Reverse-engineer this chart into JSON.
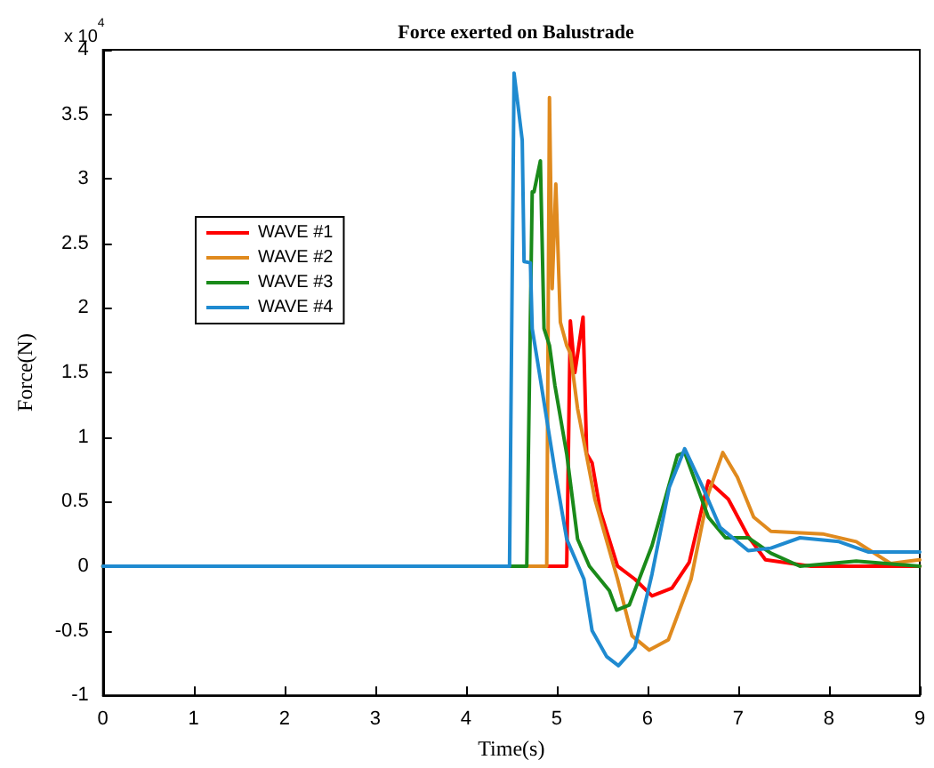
{
  "chart_data": {
    "type": "line",
    "title": "Force exerted on Balustrade",
    "xlabel": "Time(s)",
    "ylabel": "Force(N)",
    "annotations": [
      "x 10$^{4}$"
    ],
    "xlim": [
      0,
      9
    ],
    "xticks": [
      0,
      1,
      2,
      3,
      4,
      5,
      6,
      7,
      8,
      9
    ],
    "ylim": [
      -1,
      4
    ],
    "yticks": [
      -1,
      -0.5,
      0,
      0.5,
      1,
      1.5,
      2,
      2.5,
      3,
      3.5,
      4
    ],
    "grid": false,
    "legend": "top left",
    "marker": "none",
    "line_style": "solid",
    "series": [
      {
        "name": "WAVE #1",
        "color": "#ff0000",
        "x": [
          0,
          5.11,
          5.15,
          5.2,
          5.29,
          5.33,
          5.39,
          5.48,
          5.67,
          5.86,
          6.05,
          6.27,
          6.46,
          6.67,
          6.89,
          7.11,
          7.3,
          7.8,
          9
        ],
        "values": [
          0,
          0,
          1.9,
          1.5,
          1.93,
          0.87,
          0.8,
          0.43,
          0,
          -0.1,
          -0.23,
          -0.17,
          0.03,
          0.66,
          0.52,
          0.23,
          0.05,
          0,
          0
        ]
      },
      {
        "name": "WAVE #2",
        "color": "#e08a1e",
        "x": [
          0,
          4.89,
          4.92,
          4.95,
          4.99,
          5.04,
          5.11,
          5.15,
          5.23,
          5.42,
          5.67,
          5.83,
          6.02,
          6.23,
          6.48,
          6.67,
          6.83,
          6.99,
          7.17,
          7.36,
          7.93,
          8.3,
          8.68,
          9
        ],
        "values": [
          0,
          0,
          3.63,
          2.15,
          2.96,
          1.89,
          1.71,
          1.65,
          1.22,
          0.52,
          -0.1,
          -0.54,
          -0.65,
          -0.57,
          -0.1,
          0.56,
          0.88,
          0.69,
          0.38,
          0.27,
          0.25,
          0.19,
          0.02,
          0.05
        ]
      },
      {
        "name": "WAVE #3",
        "color": "#1a8a1a",
        "x": [
          0,
          4.67,
          4.73,
          4.75,
          4.82,
          4.86,
          4.92,
          4.98,
          5.11,
          5.23,
          5.36,
          5.58,
          5.66,
          5.8,
          6.05,
          6.33,
          6.41,
          6.67,
          6.86,
          7.11,
          7.36,
          7.68,
          8.3,
          9
        ],
        "values": [
          0,
          0,
          2.9,
          2.9,
          3.14,
          1.84,
          1.71,
          1.4,
          0.87,
          0.21,
          0,
          -0.19,
          -0.34,
          -0.3,
          0.16,
          0.86,
          0.88,
          0.38,
          0.22,
          0.22,
          0.1,
          0,
          0.04,
          0
        ]
      },
      {
        "name": "WAVE #4",
        "color": "#1f8ad0",
        "x": [
          0,
          4.48,
          4.53,
          4.62,
          4.64,
          4.71,
          4.73,
          4.79,
          4.98,
          5.11,
          5.3,
          5.39,
          5.55,
          5.68,
          5.86,
          6.05,
          6.24,
          6.41,
          6.61,
          6.8,
          7.11,
          7.36,
          7.68,
          8.11,
          8.43,
          9
        ],
        "values": [
          0,
          0,
          3.82,
          3.3,
          2.36,
          2.35,
          1.84,
          1.58,
          0.74,
          0.21,
          -0.1,
          -0.5,
          -0.7,
          -0.77,
          -0.63,
          -0.06,
          0.61,
          0.91,
          0.61,
          0.3,
          0.12,
          0.14,
          0.22,
          0.19,
          0.11,
          0.11
        ]
      }
    ]
  }
}
